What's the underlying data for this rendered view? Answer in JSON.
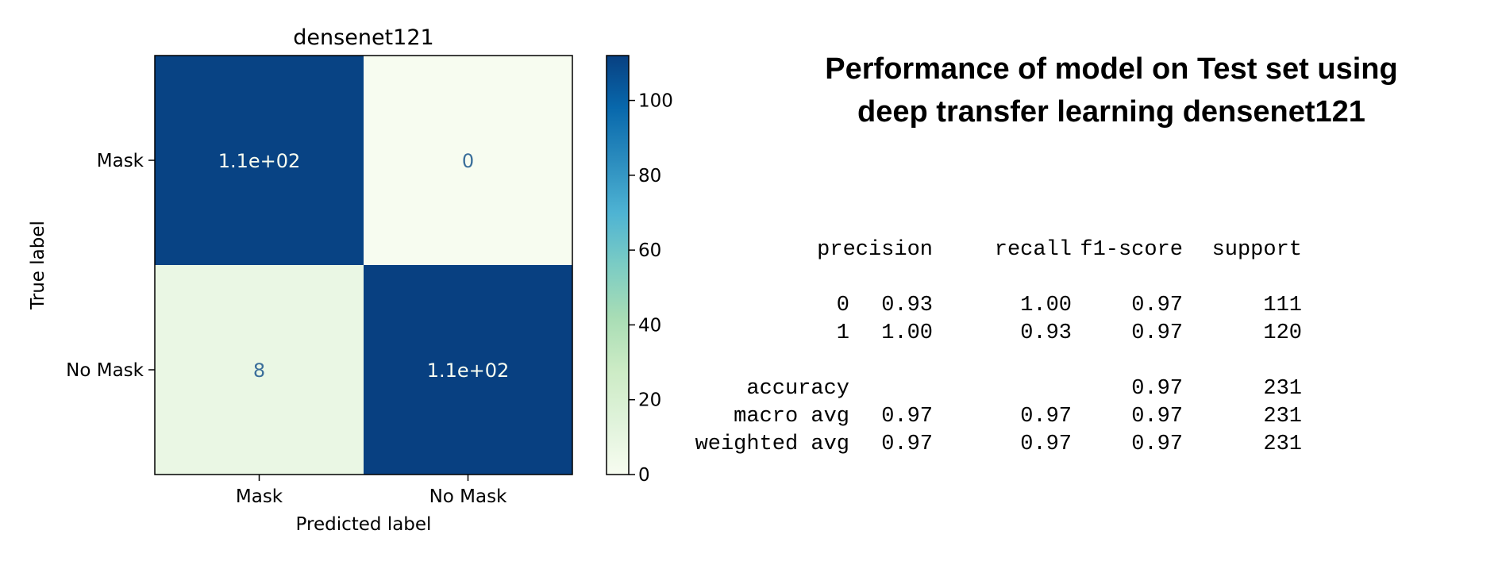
{
  "chart_data": {
    "type": "heatmap",
    "title": "densenet121",
    "xlabel": "Predicted label",
    "ylabel": "True label",
    "x_categories": [
      "Mask",
      "No Mask"
    ],
    "y_categories": [
      "Mask",
      "No Mask"
    ],
    "values": [
      [
        111,
        0
      ],
      [
        8,
        112
      ]
    ],
    "cell_labels": [
      [
        "1.1e+02",
        "0"
      ],
      [
        "8",
        "1.1e+02"
      ]
    ],
    "colormap": "GnBu",
    "colorbar": {
      "range": [
        0,
        112
      ],
      "ticks": [
        0,
        20,
        40,
        60,
        80,
        100
      ]
    },
    "colors": {
      "high": "#084081",
      "low": "#f7fcf0",
      "low_mid": "#e9f6e3",
      "text_dark": "#3a6e9a",
      "text_light": "#f7fcf0"
    }
  },
  "report": {
    "title_lines": [
      "Performance of model on Test set using",
      "deep transfer learning densenet121"
    ],
    "headers": [
      "precision",
      "recall",
      "f1-score",
      "support"
    ],
    "rows": [
      {
        "label": "0",
        "precision": "0.93",
        "recall": "1.00",
        "f1": "0.97",
        "support": "111"
      },
      {
        "label": "1",
        "precision": "1.00",
        "recall": "0.93",
        "f1": "0.97",
        "support": "120"
      }
    ],
    "summary_rows": [
      {
        "label": "accuracy",
        "precision": "",
        "recall": "",
        "f1": "0.97",
        "support": "231"
      },
      {
        "label": "macro avg",
        "precision": "0.97",
        "recall": "0.97",
        "f1": "0.97",
        "support": "231"
      },
      {
        "label": "weighted avg",
        "precision": "0.97",
        "recall": "0.97",
        "f1": "0.97",
        "support": "231"
      }
    ]
  }
}
